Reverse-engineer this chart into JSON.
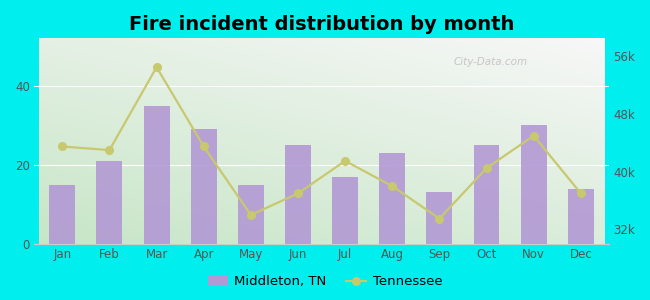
{
  "title": "Fire incident distribution by month",
  "months": [
    "Jan",
    "Feb",
    "Mar",
    "Apr",
    "May",
    "Jun",
    "Jul",
    "Aug",
    "Sep",
    "Oct",
    "Nov",
    "Dec"
  ],
  "middleton_values": [
    15,
    21,
    35,
    29,
    15,
    25,
    17,
    23,
    13,
    25,
    30,
    14
  ],
  "tennessee_values": [
    43500,
    43000,
    54500,
    43500,
    34000,
    37000,
    41500,
    38000,
    33500,
    40500,
    45000,
    37000
  ],
  "bar_color": "#b399d4",
  "line_color": "#c8c86e",
  "line_marker": "o",
  "outer_bg": "#00eeee",
  "left_ylim": [
    0,
    52
  ],
  "left_yticks": [
    0,
    20,
    40
  ],
  "right_ylim": [
    30000,
    58500
  ],
  "right_yticks": [
    32000,
    40000,
    48000,
    56000
  ],
  "right_yticklabels": [
    "32k",
    "40k",
    "48k",
    "56k"
  ],
  "title_fontsize": 14,
  "tick_fontsize": 8.5,
  "legend_fontsize": 9.5
}
